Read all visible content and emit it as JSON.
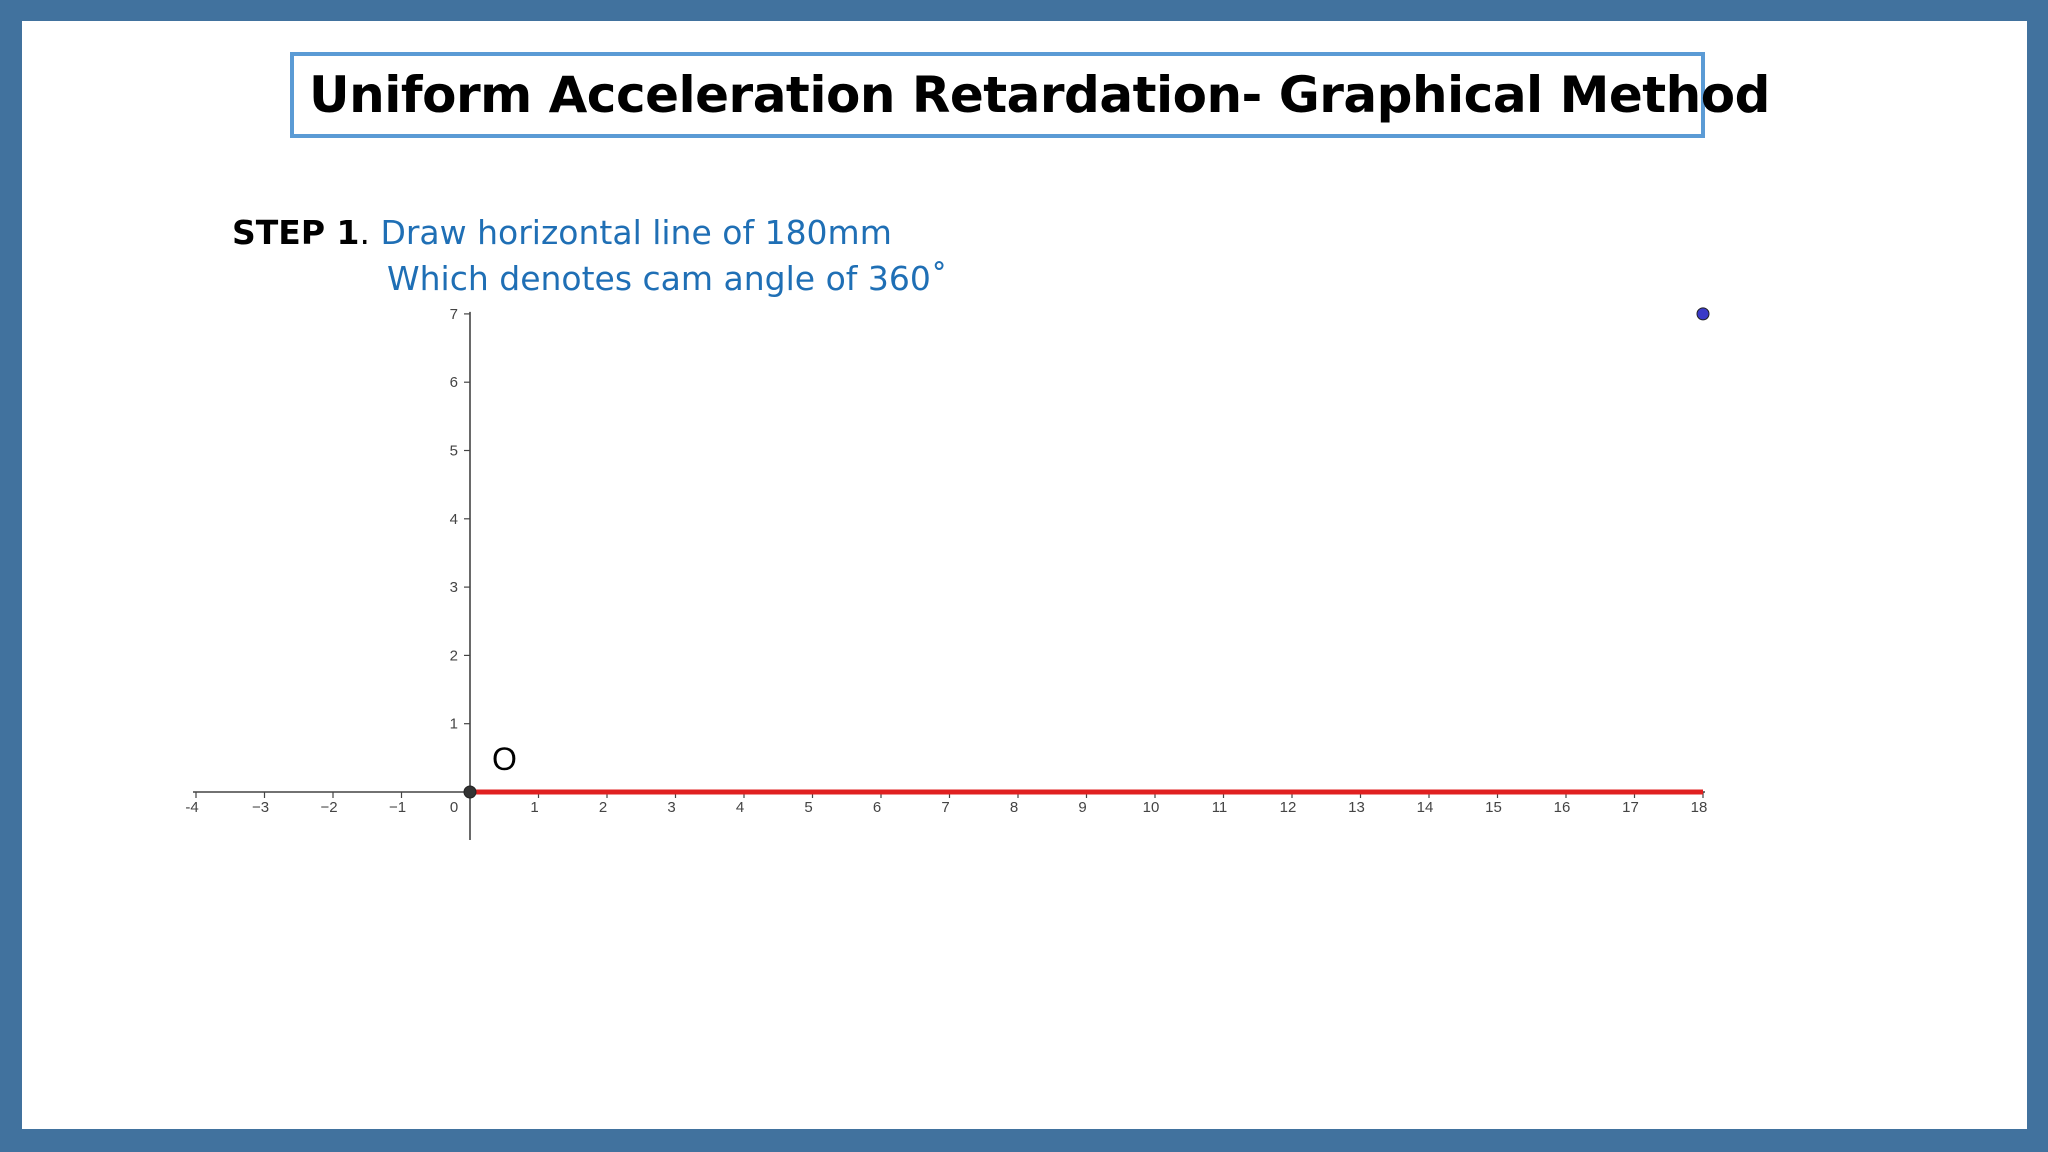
{
  "title": "Uniform Acceleration Retardation- Graphical Method",
  "step": {
    "label": "STEP 1",
    "separator": ".",
    "line1": " Draw horizontal line of 180mm",
    "line2": "Which denotes cam angle of 360˚"
  },
  "chart_data": {
    "type": "line",
    "x_ticks": [
      "-4",
      "−3",
      "−2",
      "−1",
      "0",
      "1",
      "2",
      "3",
      "4",
      "5",
      "6",
      "7",
      "8",
      "9",
      "10",
      "11",
      "12",
      "13",
      "14",
      "15",
      "16",
      "17",
      "18"
    ],
    "y_ticks": [
      "1",
      "2",
      "3",
      "4",
      "5",
      "6",
      "7"
    ],
    "xlim": [
      -4,
      18
    ],
    "ylim": [
      0,
      7
    ],
    "origin_label": "O",
    "segment": {
      "x": [
        0,
        18
      ],
      "y": [
        0,
        0
      ],
      "color": "#e02020"
    },
    "points": [
      {
        "x": 0,
        "y": 0,
        "color": "#333333"
      },
      {
        "x": 18,
        "y": 7,
        "color": "#3a3ac8"
      }
    ]
  }
}
